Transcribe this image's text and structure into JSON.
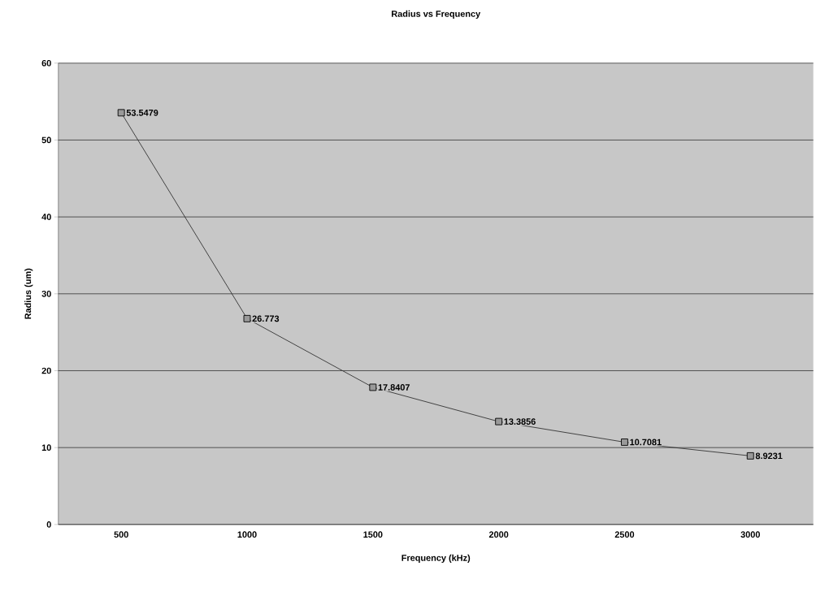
{
  "chart_data": {
    "type": "line",
    "title": "Radius vs Frequency",
    "xlabel": "Frequency (kHz)",
    "ylabel": "Radius (um)",
    "categories": [
      "500",
      "1000",
      "1500",
      "2000",
      "2500",
      "3000"
    ],
    "series": [
      {
        "color": "#333333",
        "values": [
          53.5479,
          26.773,
          17.8407,
          13.3856,
          10.7081,
          8.9231
        ]
      }
    ],
    "ylim": [
      0,
      60
    ],
    "yticks": [
      0,
      10,
      20,
      30,
      40,
      50,
      60
    ],
    "grid": "y",
    "marker": "square",
    "line_style": "solid",
    "data_labels": true
  }
}
